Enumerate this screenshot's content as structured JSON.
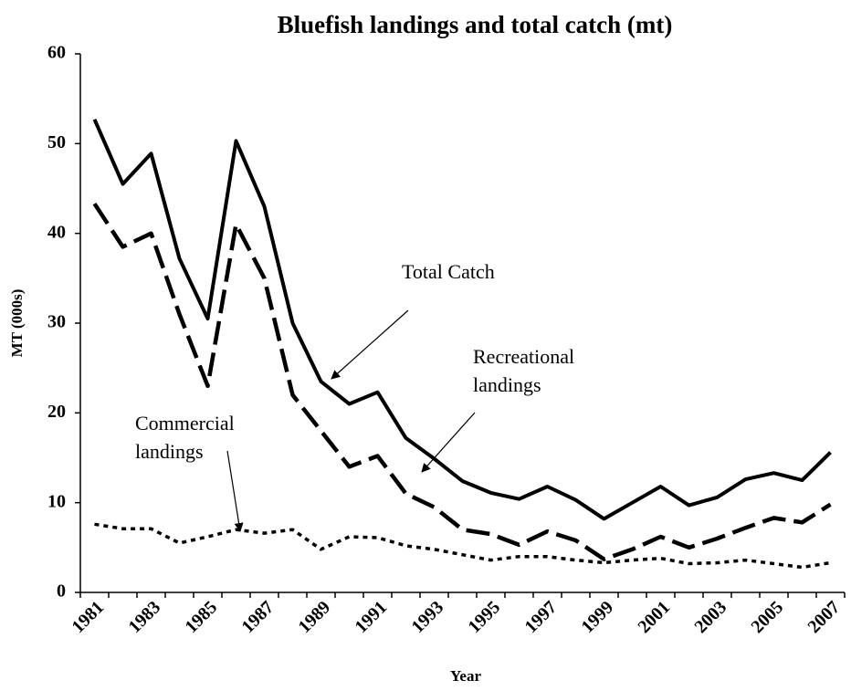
{
  "chart_data": {
    "type": "line",
    "title": "Bluefish landings and total catch (mt)",
    "x_label": "Year",
    "y_label": "MT (000s)",
    "categories": [
      "1981",
      null,
      "1983",
      null,
      "1985",
      null,
      "1987",
      null,
      "1989",
      null,
      "1991",
      null,
      "1993",
      null,
      "1995",
      null,
      "1997",
      null,
      "1999",
      null,
      "2001",
      null,
      "2003",
      null,
      "2005",
      null,
      "2007"
    ],
    "series": [
      {
        "color": "#000000",
        "dash": "solid",
        "values": [
          52.7,
          45.5,
          48.9,
          37.2,
          30.5,
          50.3,
          43,
          30,
          23.5,
          21,
          22.3,
          17.2,
          14.9,
          12.4,
          11.1,
          10.4,
          11.8,
          10.3,
          8.2,
          10,
          11.8,
          9.7,
          10.6,
          12.6,
          13.3,
          12.5,
          15.6
        ]
      },
      {
        "color": "#000000",
        "dash": "long",
        "values": [
          43.3,
          38.5,
          40,
          31,
          23,
          41,
          35,
          22,
          18,
          14,
          15.2,
          11,
          9.5,
          7,
          6.5,
          5.3,
          6.8,
          5.8,
          3.7,
          4.8,
          6.2,
          5,
          6,
          7.2,
          8.3,
          7.8,
          9.8
        ]
      },
      {
        "color": "#000000",
        "dash": "dot",
        "values": [
          7.6,
          7.1,
          7.1,
          5.5,
          6.2,
          7,
          6.6,
          7,
          4.8,
          6.2,
          6.1,
          5.2,
          4.8,
          4.2,
          3.6,
          4,
          4,
          3.6,
          3.3,
          3.6,
          3.8,
          3.2,
          3.3,
          3.6,
          3.2,
          2.8,
          3.3
        ]
      }
    ],
    "annotations": [
      {
        "text": [
          "Total Catch"
        ]
      },
      {
        "text": [
          "Recreational",
          "landings"
        ]
      },
      {
        "text": [
          "Commercial",
          "landings"
        ]
      }
    ],
    "ylim": [
      0,
      60
    ],
    "yticks": [
      0,
      10,
      20,
      30,
      40,
      50,
      60
    ],
    "grid": false
  }
}
